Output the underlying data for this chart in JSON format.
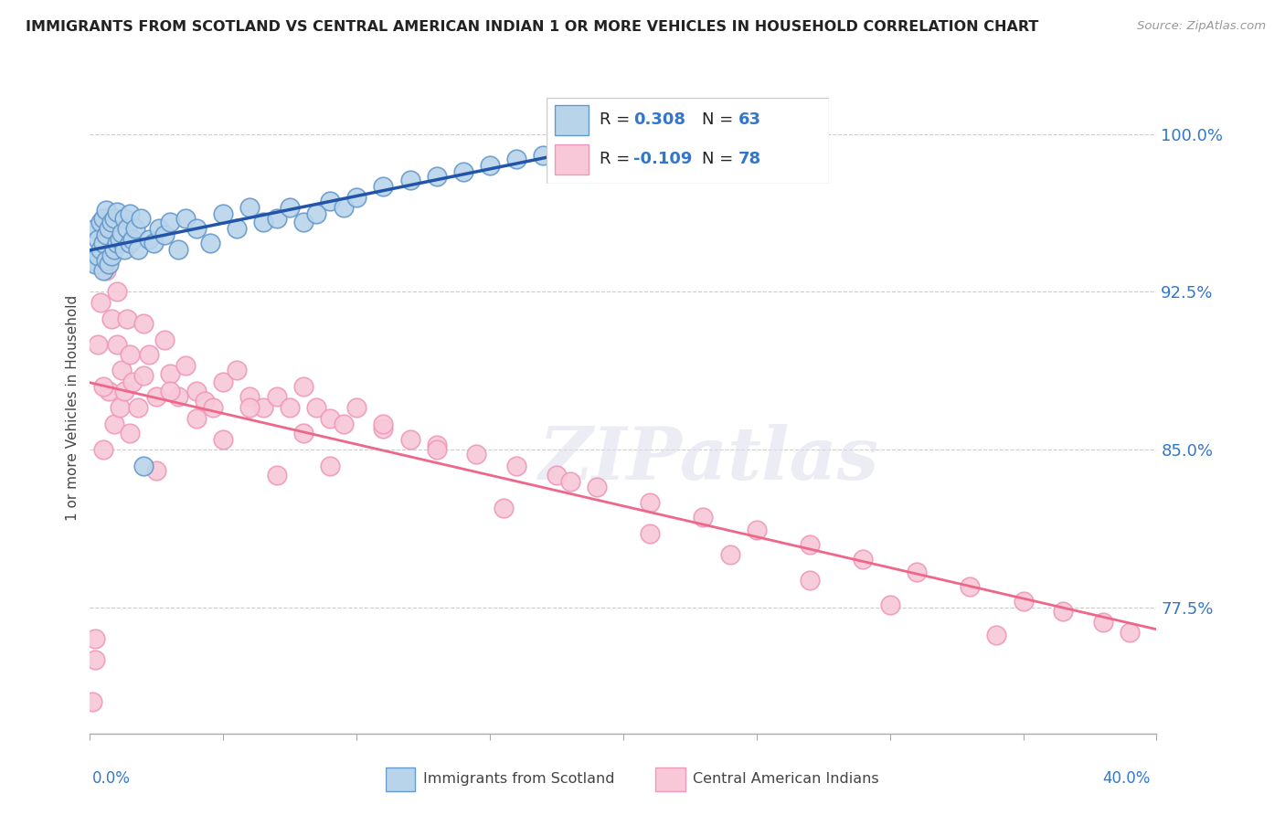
{
  "title": "IMMIGRANTS FROM SCOTLAND VS CENTRAL AMERICAN INDIAN 1 OR MORE VEHICLES IN HOUSEHOLD CORRELATION CHART",
  "source": "Source: ZipAtlas.com",
  "ylabel": "1 or more Vehicles in Household",
  "ytick_labels": [
    "77.5%",
    "85.0%",
    "92.5%",
    "100.0%"
  ],
  "ytick_values": [
    0.775,
    0.85,
    0.925,
    1.0
  ],
  "xmin": 0.0,
  "xmax": 0.4,
  "ymin": 0.715,
  "ymax": 1.025,
  "watermark_text": "ZIPatlas",
  "scotland_R": 0.308,
  "scotland_N": 63,
  "central_R": -0.109,
  "central_N": 78,
  "scotland_color": "#b8d4ea",
  "scotland_edge": "#6699cc",
  "central_color": "#f8c8d8",
  "central_edge": "#ee99bb",
  "trend_scotland_color": "#2255aa",
  "trend_central_color": "#ee6688",
  "legend_scotland_color": "#b8d4ea",
  "legend_central_color": "#f8c8d8",
  "scotland_x": [
    0.001,
    0.002,
    0.002,
    0.003,
    0.003,
    0.004,
    0.004,
    0.005,
    0.005,
    0.005,
    0.006,
    0.006,
    0.006,
    0.007,
    0.007,
    0.008,
    0.008,
    0.009,
    0.009,
    0.01,
    0.01,
    0.011,
    0.012,
    0.013,
    0.013,
    0.014,
    0.015,
    0.015,
    0.016,
    0.017,
    0.018,
    0.019,
    0.02,
    0.022,
    0.024,
    0.026,
    0.028,
    0.03,
    0.033,
    0.036,
    0.04,
    0.045,
    0.05,
    0.055,
    0.06,
    0.065,
    0.07,
    0.075,
    0.08,
    0.085,
    0.09,
    0.095,
    0.1,
    0.11,
    0.12,
    0.13,
    0.14,
    0.15,
    0.16,
    0.17,
    0.18,
    0.19,
    0.2
  ],
  "scotland_y": [
    0.94,
    0.938,
    0.955,
    0.942,
    0.95,
    0.945,
    0.958,
    0.935,
    0.948,
    0.96,
    0.94,
    0.952,
    0.964,
    0.938,
    0.955,
    0.942,
    0.958,
    0.945,
    0.96,
    0.948,
    0.963,
    0.95,
    0.953,
    0.945,
    0.96,
    0.955,
    0.948,
    0.962,
    0.95,
    0.955,
    0.945,
    0.96,
    0.842,
    0.95,
    0.948,
    0.955,
    0.952,
    0.958,
    0.945,
    0.96,
    0.955,
    0.948,
    0.962,
    0.955,
    0.965,
    0.958,
    0.96,
    0.965,
    0.958,
    0.962,
    0.968,
    0.965,
    0.97,
    0.975,
    0.978,
    0.98,
    0.982,
    0.985,
    0.988,
    0.99,
    0.993,
    0.996,
    0.998
  ],
  "central_x": [
    0.001,
    0.002,
    0.003,
    0.004,
    0.005,
    0.006,
    0.007,
    0.008,
    0.009,
    0.01,
    0.011,
    0.012,
    0.013,
    0.014,
    0.015,
    0.016,
    0.018,
    0.02,
    0.022,
    0.025,
    0.028,
    0.03,
    0.033,
    0.036,
    0.04,
    0.043,
    0.046,
    0.05,
    0.055,
    0.06,
    0.065,
    0.07,
    0.075,
    0.08,
    0.085,
    0.09,
    0.095,
    0.1,
    0.11,
    0.12,
    0.13,
    0.145,
    0.16,
    0.175,
    0.19,
    0.21,
    0.23,
    0.25,
    0.27,
    0.29,
    0.31,
    0.33,
    0.35,
    0.365,
    0.38,
    0.39,
    0.002,
    0.005,
    0.01,
    0.015,
    0.02,
    0.025,
    0.03,
    0.04,
    0.05,
    0.06,
    0.07,
    0.08,
    0.09,
    0.11,
    0.13,
    0.155,
    0.18,
    0.21,
    0.24,
    0.27,
    0.3,
    0.34
  ],
  "central_y": [
    0.73,
    0.75,
    0.9,
    0.92,
    0.85,
    0.935,
    0.878,
    0.912,
    0.862,
    0.9,
    0.87,
    0.888,
    0.878,
    0.912,
    0.895,
    0.882,
    0.87,
    0.885,
    0.895,
    0.875,
    0.902,
    0.886,
    0.875,
    0.89,
    0.878,
    0.873,
    0.87,
    0.882,
    0.888,
    0.875,
    0.87,
    0.875,
    0.87,
    0.88,
    0.87,
    0.865,
    0.862,
    0.87,
    0.86,
    0.855,
    0.852,
    0.848,
    0.842,
    0.838,
    0.832,
    0.825,
    0.818,
    0.812,
    0.805,
    0.798,
    0.792,
    0.785,
    0.778,
    0.773,
    0.768,
    0.763,
    0.76,
    0.88,
    0.925,
    0.858,
    0.91,
    0.84,
    0.878,
    0.865,
    0.855,
    0.87,
    0.838,
    0.858,
    0.842,
    0.862,
    0.85,
    0.822,
    0.835,
    0.81,
    0.8,
    0.788,
    0.776,
    0.762
  ]
}
